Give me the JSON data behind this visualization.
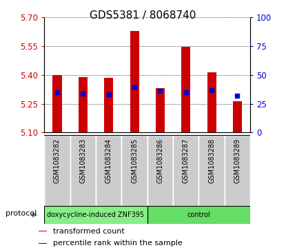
{
  "title": "GDS5381 / 8068740",
  "samples": [
    "GSM1083282",
    "GSM1083283",
    "GSM1083284",
    "GSM1083285",
    "GSM1083286",
    "GSM1083287",
    "GSM1083288",
    "GSM1083289"
  ],
  "transformed_counts": [
    5.4,
    5.39,
    5.385,
    5.628,
    5.332,
    5.547,
    5.415,
    5.262
  ],
  "percentile_ranks": [
    35,
    34,
    33,
    40,
    36,
    35,
    37,
    32
  ],
  "ylim_left": [
    5.1,
    5.7
  ],
  "yticks_left": [
    5.1,
    5.25,
    5.4,
    5.55,
    5.7
  ],
  "yticks_right": [
    0,
    25,
    50,
    75,
    100
  ],
  "bar_color": "#cc0000",
  "dot_color": "#0000cc",
  "bar_width": 0.35,
  "base_value": 5.1,
  "groups": [
    {
      "label": "doxycycline-induced ZNF395",
      "start": 0,
      "end": 3,
      "color": "#88ee88"
    },
    {
      "label": "control",
      "start": 4,
      "end": 7,
      "color": "#66dd66"
    }
  ],
  "protocol_label": "protocol",
  "arrow_color": "#888888",
  "legend_items": [
    {
      "color": "#cc0000",
      "label": "transformed count"
    },
    {
      "color": "#0000cc",
      "label": "percentile rank within the sample"
    }
  ],
  "sample_cell_color": "#cccccc",
  "background_color": "#ffffff",
  "tick_label_color_left": "#cc0000",
  "tick_label_color_right": "#0000cc",
  "title_fontsize": 11,
  "tick_fontsize": 8.5,
  "sample_fontsize": 7,
  "legend_fontsize": 8
}
